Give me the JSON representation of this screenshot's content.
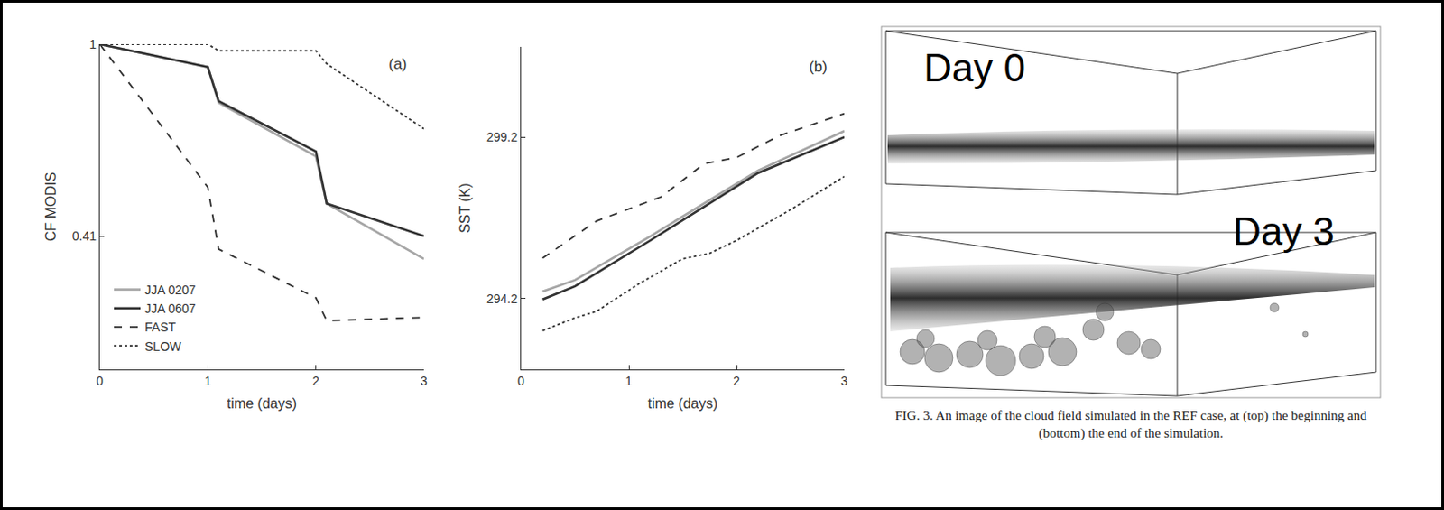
{
  "chart_data": [
    {
      "type": "line",
      "xlabel": "time (days)",
      "ylabel": "CF MODIS",
      "annotations": [
        "(a)"
      ],
      "xlim": [
        0,
        3
      ],
      "xticks": [
        0,
        1,
        2,
        3
      ],
      "ylim": [
        0,
        1
      ],
      "yticks": [
        0.41,
        1
      ],
      "grid": false,
      "legend": "lower left",
      "series": [
        {
          "name": "JJA 0207",
          "color": "#a6a6a6",
          "line_style": "solid",
          "x": [
            0,
            1,
            1.1,
            2,
            2.1,
            3
          ],
          "values": [
            1,
            0.93,
            0.82,
            0.655,
            0.51,
            0.34
          ]
        },
        {
          "name": "JJA 0607",
          "color": "#333333",
          "line_style": "solid",
          "x": [
            0,
            1,
            1.1,
            2,
            2.1,
            3
          ],
          "values": [
            1,
            0.93,
            0.825,
            0.67,
            0.51,
            0.41
          ]
        },
        {
          "name": "FAST",
          "color": "#333333",
          "line_style": "dashed",
          "x": [
            0,
            1,
            1.1,
            2,
            2.1,
            3
          ],
          "values": [
            1,
            0.56,
            0.37,
            0.22,
            0.15,
            0.16
          ]
        },
        {
          "name": "SLOW",
          "color": "#333333",
          "line_style": "dotted",
          "x": [
            0,
            1,
            1.1,
            2,
            2.1,
            3
          ],
          "values": [
            1,
            1,
            0.98,
            0.98,
            0.94,
            0.74
          ]
        }
      ]
    },
    {
      "type": "line",
      "xlabel": "time (days)",
      "ylabel": "SST (K)",
      "annotations": [
        "(b)"
      ],
      "xlim": [
        0,
        3
      ],
      "xticks": [
        0,
        1,
        2,
        3
      ],
      "ylim": [
        292,
        302
      ],
      "yticks": [
        294.2,
        299.2
      ],
      "grid": false,
      "series": [
        {
          "color": "#a6a6a6",
          "line_style": "solid",
          "x": [
            0.2,
            0.5,
            1.2,
            2.2,
            3
          ],
          "values": [
            294.42,
            294.77,
            296.13,
            298.17,
            299.39
          ]
        },
        {
          "color": "#333333",
          "line_style": "solid",
          "x": [
            0.2,
            0.5,
            1.2,
            2.2,
            3
          ],
          "values": [
            294.17,
            294.58,
            296.0,
            298.09,
            299.2
          ]
        },
        {
          "color": "#333333",
          "line_style": "dashed",
          "x": [
            0.2,
            0.5,
            0.7,
            1.3,
            1.7,
            2.0,
            2.4,
            3
          ],
          "values": [
            295.45,
            296.13,
            296.6,
            297.35,
            298.38,
            298.57,
            299.25,
            299.93
          ]
        },
        {
          "color": "#333333",
          "line_style": "dotted",
          "x": [
            0.2,
            0.5,
            0.7,
            1.1,
            1.5,
            1.75,
            2.0,
            2.5,
            3
          ],
          "values": [
            293.2,
            293.6,
            293.8,
            294.67,
            295.43,
            295.6,
            296.0,
            296.95,
            297.98
          ]
        }
      ]
    }
  ],
  "figure": {
    "panels": [
      {
        "label": "Day 0"
      },
      {
        "label": "Day 3"
      }
    ],
    "caption": "FIG. 3. An image of the cloud field simulated in the REF case, at (top) the beginning and (bottom) the end of the simulation."
  }
}
